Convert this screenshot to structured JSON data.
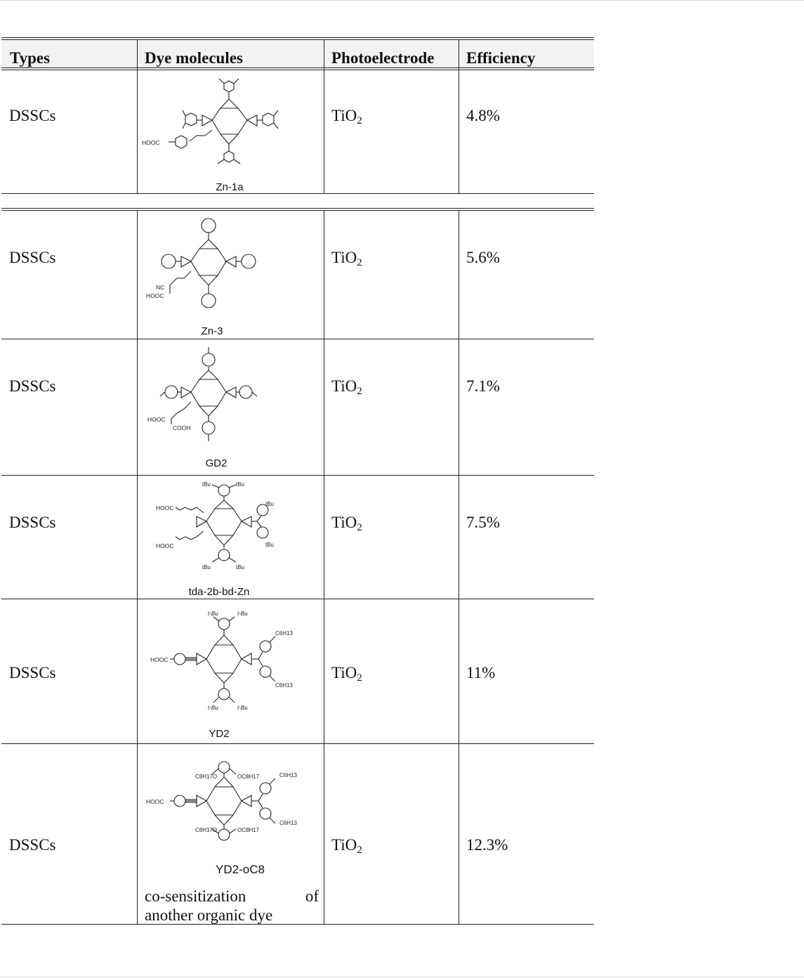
{
  "table": {
    "headers": {
      "types": "Types",
      "dye": "Dye molecules",
      "electrode": "Photoelectrode",
      "efficiency": "Efficiency"
    },
    "rows": [
      {
        "type": "DSSCs",
        "dye_name": "Zn-1a",
        "substituent_labels": [
          "HOOC"
        ],
        "electrode_base": "TiO",
        "electrode_sub": "2",
        "efficiency": "4.8%"
      },
      {
        "type": "DSSCs",
        "dye_name": "Zn-3",
        "substituent_labels": [
          "NC",
          "HOOC"
        ],
        "electrode_base": "TiO",
        "electrode_sub": "2",
        "efficiency": "5.6%"
      },
      {
        "type": "DSSCs",
        "dye_name": "GD2",
        "substituent_labels": [
          "HOOC",
          "COOH"
        ],
        "electrode_base": "TiO",
        "electrode_sub": "2",
        "efficiency": "7.1%"
      },
      {
        "type": "DSSCs",
        "dye_name": "tda-2b-bd-Zn",
        "substituent_labels": [
          "tBu",
          "tBu",
          "tBu",
          "tBu",
          "tBu",
          "tBu",
          "HOOC",
          "HOOC"
        ],
        "electrode_base": "TiO",
        "electrode_sub": "2",
        "efficiency": "7.5%"
      },
      {
        "type": "DSSCs",
        "dye_name": "YD2",
        "substituent_labels": [
          "t-Bu",
          "t-Bu",
          "t-Bu",
          "t-Bu",
          "HOOC",
          "C6H13",
          "C6H13"
        ],
        "electrode_base": "TiO",
        "electrode_sub": "2",
        "efficiency": "11%"
      },
      {
        "type": "DSSCs",
        "dye_name": "YD2-oC8",
        "substituent_labels": [
          "C8H17O",
          "OC8H17",
          "C8H17O",
          "OC8H17",
          "HOOC",
          "C6H13",
          "C6H13"
        ],
        "electrode_base": "TiO",
        "electrode_sub": "2",
        "efficiency": "12.3%",
        "note_line1_a": "co-sensitization",
        "note_line1_b": "of",
        "note_line2": "another organic dye"
      }
    ]
  },
  "colors": {
    "ink": "#111111",
    "header_bg": "#f2f2f2",
    "rule": "#222222"
  }
}
